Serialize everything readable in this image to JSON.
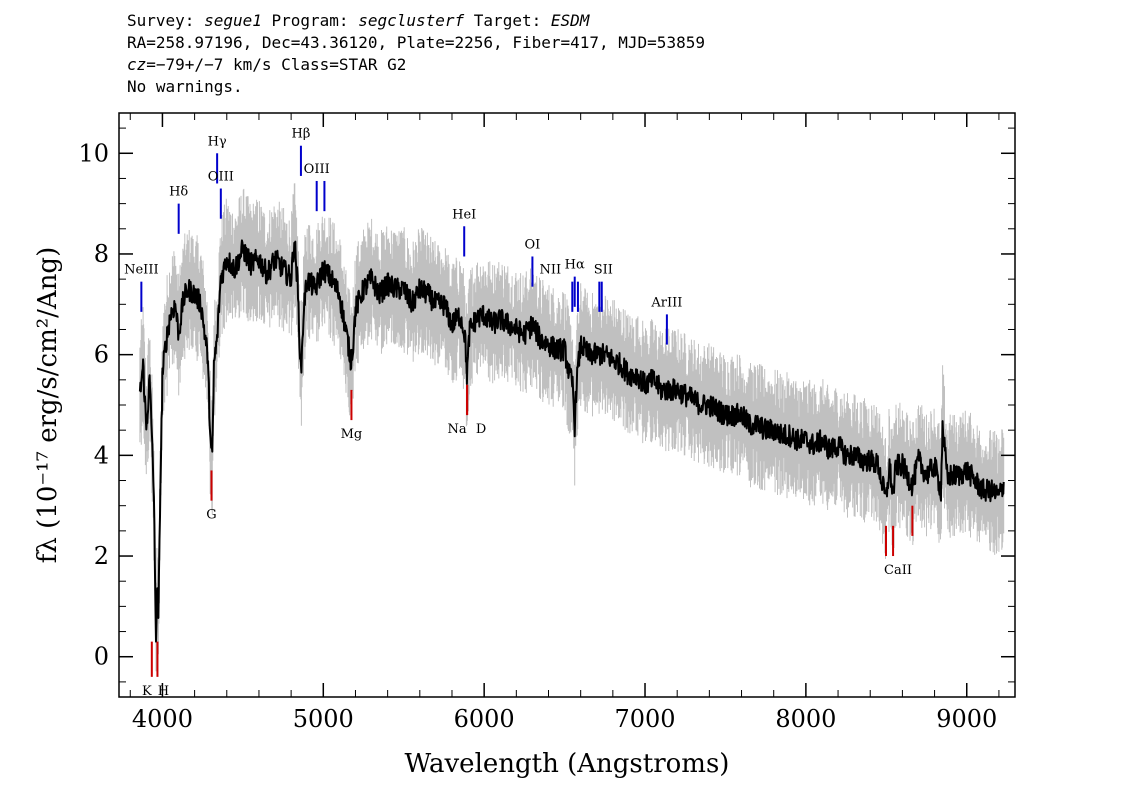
{
  "header": {
    "line1": {
      "survey_label": "Survey: ",
      "survey": "segue1",
      "program_label": " Program: ",
      "program": "segclusterf",
      "target_label": " Target: ",
      "target": "ESDM"
    },
    "line2": "RA=258.97196, Dec=43.36120, Plate=2256, Fiber=417, MJD=53859",
    "line3": {
      "cz_label": "cz",
      "cz_value": "=−79+/−7 km/s Class=STAR G2"
    },
    "line4": "No warnings."
  },
  "chart_data": {
    "type": "line",
    "title": "",
    "xlabel": "Wavelength (Angstroms)",
    "ylabel": "fλ (10⁻¹⁷ erg/s/cm²/Ang)",
    "xlim": [
      3730,
      9300
    ],
    "ylim": [
      -0.8,
      10.8
    ],
    "xticks": [
      4000,
      5000,
      6000,
      7000,
      8000,
      9000
    ],
    "yticks": [
      0,
      2,
      4,
      6,
      8,
      10
    ],
    "grid": false,
    "colors": {
      "spectrum": "#000000",
      "noise": "#c0c0c0",
      "emission": "#0000cc",
      "absorption": "#cc0000"
    },
    "series": [
      {
        "name": "",
        "x": [
          3860,
          3880,
          3900,
          3920,
          3940,
          3950,
          3960,
          3968,
          3975,
          3985,
          4000,
          4020,
          4050,
          4080,
          4101,
          4130,
          4160,
          4200,
          4240,
          4280,
          4300,
          4310,
          4320,
          4340,
          4362,
          4400,
          4450,
          4500,
          4550,
          4600,
          4650,
          4700,
          4750,
          4800,
          4820,
          4840,
          4861,
          4880,
          4900,
          4950,
          5000,
          5050,
          5100,
          5150,
          5170,
          5183,
          5200,
          5250,
          5300,
          5350,
          5400,
          5450,
          5500,
          5550,
          5600,
          5650,
          5700,
          5750,
          5800,
          5850,
          5880,
          5893,
          5910,
          5950,
          6000,
          6050,
          6100,
          6150,
          6200,
          6250,
          6300,
          6350,
          6400,
          6450,
          6500,
          6530,
          6550,
          6563,
          6575,
          6600,
          6650,
          6700,
          6750,
          6800,
          6850,
          6900,
          6950,
          7000,
          7050,
          7100,
          7150,
          7200,
          7250,
          7300,
          7350,
          7400,
          7450,
          7500,
          7550,
          7600,
          7650,
          7700,
          7750,
          7800,
          7850,
          7900,
          7950,
          8000,
          8050,
          8100,
          8150,
          8200,
          8250,
          8300,
          8350,
          8400,
          8450,
          8498,
          8520,
          8542,
          8560,
          8600,
          8662,
          8700,
          8750,
          8800,
          8840,
          8850,
          8880,
          8900,
          8950,
          9000,
          9050,
          9100,
          9150,
          9200,
          9230
        ],
        "y": [
          5.2,
          5.8,
          4.5,
          5.5,
          4.0,
          2.5,
          0.4,
          1.2,
          0.6,
          3.0,
          5.6,
          6.2,
          6.8,
          7.0,
          6.4,
          7.1,
          7.3,
          7.2,
          7.0,
          6.0,
          4.2,
          3.9,
          5.8,
          6.3,
          7.5,
          7.9,
          7.7,
          8.1,
          7.8,
          7.9,
          7.6,
          7.9,
          7.7,
          7.5,
          8.3,
          7.4,
          5.6,
          7.0,
          7.5,
          7.3,
          7.7,
          7.5,
          7.2,
          6.3,
          5.9,
          6.1,
          6.9,
          7.3,
          7.5,
          7.2,
          7.4,
          7.3,
          7.3,
          7.0,
          7.3,
          7.2,
          7.0,
          7.0,
          6.6,
          6.8,
          6.4,
          5.6,
          6.5,
          6.7,
          6.8,
          6.6,
          6.7,
          6.6,
          6.5,
          6.4,
          6.6,
          6.3,
          6.2,
          6.1,
          6.1,
          5.6,
          5.4,
          4.6,
          5.5,
          6.2,
          6.0,
          6.0,
          6.0,
          5.9,
          5.8,
          5.6,
          5.6,
          5.4,
          5.5,
          5.3,
          5.3,
          5.3,
          5.2,
          5.1,
          5.0,
          5.0,
          4.9,
          4.8,
          4.8,
          4.8,
          4.6,
          4.6,
          4.5,
          4.5,
          4.4,
          4.4,
          4.3,
          4.3,
          4.2,
          4.3,
          4.1,
          4.2,
          4.0,
          4.0,
          3.9,
          3.9,
          3.8,
          3.1,
          3.8,
          3.2,
          3.8,
          3.8,
          3.4,
          3.9,
          3.6,
          3.8,
          3.3,
          4.6,
          3.5,
          3.6,
          3.6,
          3.7,
          3.5,
          3.3,
          3.3,
          3.2,
          3.4
        ]
      }
    ],
    "lines": [
      {
        "label": "NeIII",
        "x": 3869,
        "y_low": 6.85,
        "y_high": 7.45,
        "type": "emission"
      },
      {
        "label": "Hδ",
        "x": 4101,
        "y_low": 8.4,
        "y_high": 9.0,
        "type": "emission"
      },
      {
        "label": "Hγ",
        "x": 4340,
        "y_low": 9.4,
        "y_high": 10.0,
        "type": "emission"
      },
      {
        "label": "OIII",
        "x": 4363,
        "y_low": 8.7,
        "y_high": 9.3,
        "type": "emission"
      },
      {
        "label": "Hβ",
        "x": 4861,
        "y_low": 9.55,
        "y_high": 10.15,
        "type": "emission"
      },
      {
        "label": "OIII",
        "x": 4959,
        "y_low": 8.85,
        "y_high": 9.45,
        "type": "emission"
      },
      {
        "label": "",
        "x": 5007,
        "y_low": 8.85,
        "y_high": 9.45,
        "type": "emission"
      },
      {
        "label": "HeI",
        "x": 5876,
        "y_low": 7.95,
        "y_high": 8.55,
        "type": "emission"
      },
      {
        "label": "OI",
        "x": 6300,
        "y_low": 7.35,
        "y_high": 7.95,
        "type": "emission"
      },
      {
        "label": "NII",
        "x": 6548,
        "y_low": 6.85,
        "y_high": 7.45,
        "type": "emission"
      },
      {
        "label": "Hα",
        "x": 6563,
        "y_low": 6.95,
        "y_high": 7.55,
        "type": "emission"
      },
      {
        "label": "",
        "x": 6583,
        "y_low": 6.85,
        "y_high": 7.45,
        "type": "emission"
      },
      {
        "label": "SII",
        "x": 6716,
        "y_low": 6.85,
        "y_high": 7.45,
        "type": "emission"
      },
      {
        "label": "",
        "x": 6731,
        "y_low": 6.85,
        "y_high": 7.45,
        "type": "emission"
      },
      {
        "label": "ArIII",
        "x": 7136,
        "y_low": 6.2,
        "y_high": 6.8,
        "type": "emission"
      },
      {
        "label": "K",
        "x": 3934,
        "y_low": -0.4,
        "y_high": 0.3,
        "type": "absorption"
      },
      {
        "label": "H",
        "x": 3969,
        "y_low": -0.4,
        "y_high": 0.3,
        "type": "absorption"
      },
      {
        "label": "G",
        "x": 4305,
        "y_low": 3.1,
        "y_high": 3.7,
        "type": "absorption"
      },
      {
        "label": "Mg",
        "x": 5175,
        "y_low": 4.7,
        "y_high": 5.3,
        "type": "absorption"
      },
      {
        "label": "Na",
        "x": 5894,
        "y_low": 4.8,
        "y_high": 5.4,
        "type": "absorption"
      },
      {
        "label": "D",
        "x": 5894,
        "y_low": 4.8,
        "y_high": 5.4,
        "type": "absorption"
      },
      {
        "label": "CaII",
        "x": 8498,
        "y_low": 2.0,
        "y_high": 2.6,
        "type": "absorption"
      },
      {
        "label": "",
        "x": 8542,
        "y_low": 2.0,
        "y_high": 2.6,
        "type": "absorption"
      },
      {
        "label": "",
        "x": 8662,
        "y_low": 2.4,
        "y_high": 3.0,
        "type": "absorption"
      }
    ]
  }
}
